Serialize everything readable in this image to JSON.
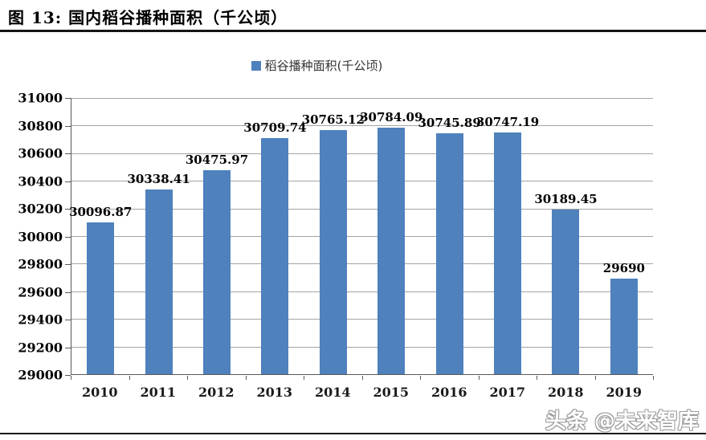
{
  "figure": {
    "title": "图  13:  国内稻谷播种面积（千公顷）",
    "watermark": "头条 @未来智库"
  },
  "chart_data": {
    "type": "bar",
    "title": "国内稻谷播种面积（千公顷）",
    "legend": [
      "稻谷播种面积(千公顷)"
    ],
    "legend_position": "top-center",
    "categories": [
      "2010",
      "2011",
      "2012",
      "2013",
      "2014",
      "2015",
      "2016",
      "2017",
      "2018",
      "2019"
    ],
    "values": [
      30096.87,
      30338.41,
      30475.97,
      30709.74,
      30765.12,
      30784.09,
      30745.89,
      30747.19,
      30189.45,
      29690
    ],
    "value_labels": [
      "30096.87",
      "30338.41",
      "30475.97",
      "30709.74",
      "30765.12",
      "30784.09",
      "30745.89",
      "30747.19",
      "30189.45",
      "29690"
    ],
    "xlabel": "",
    "ylabel": "",
    "ylim": [
      29000,
      31000
    ],
    "ytick_step": 200,
    "yticks": [
      "29000",
      "29200",
      "29400",
      "29600",
      "29800",
      "30000",
      "30200",
      "30400",
      "30600",
      "30800",
      "31000"
    ],
    "grid": true,
    "colors": {
      "bar": "#4F81BD",
      "gridline": "#a3a3a3",
      "axis": "#595959",
      "title_rule": "#151515",
      "label_text": "#000000"
    }
  }
}
